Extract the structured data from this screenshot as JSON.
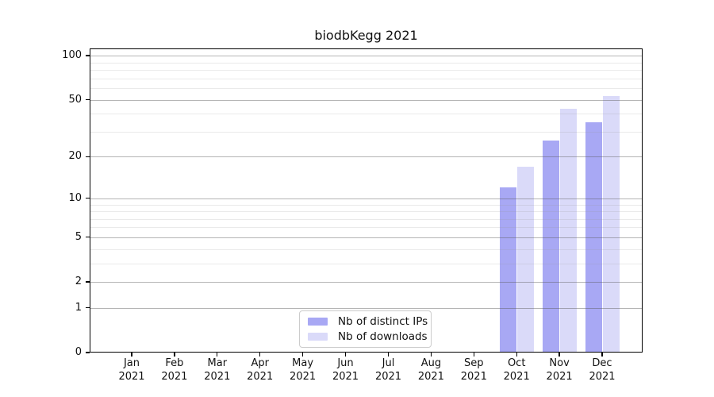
{
  "title": "biodbKegg 2021",
  "chart_data": {
    "type": "bar",
    "title": "biodbKegg 2021",
    "x_categories": [
      "Jan",
      "Feb",
      "Mar",
      "Apr",
      "May",
      "Jun",
      "Jul",
      "Aug",
      "Sep",
      "Oct",
      "Nov",
      "Dec"
    ],
    "x_year": "2021",
    "series": [
      {
        "name": "Nb of distinct IPs",
        "color": "#a8a8f4",
        "values": [
          0,
          0,
          0,
          0,
          0,
          0,
          0,
          0,
          0,
          12,
          26,
          35
        ]
      },
      {
        "name": "Nb of downloads",
        "color": "#dadaf9",
        "values": [
          0,
          0,
          0,
          0,
          0,
          0,
          0,
          0,
          0,
          17,
          43,
          53
        ]
      }
    ],
    "y_scale": "log1p",
    "ylim": [
      0,
      112
    ],
    "y_major_ticks": [
      0,
      1,
      2,
      5,
      10,
      20,
      50,
      100
    ],
    "y_minor_gridlines": [
      3,
      4,
      6,
      7,
      8,
      9,
      30,
      40,
      60,
      70,
      80,
      90
    ],
    "grid": true,
    "legend_position": "lower-center"
  },
  "colors": {
    "major_grid": "#b5b5b5",
    "minor_grid": "#e8e8e8",
    "spine": "#000000",
    "legend_border": "#cccccc"
  }
}
